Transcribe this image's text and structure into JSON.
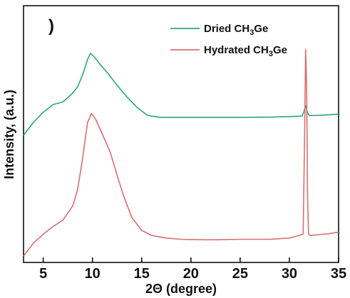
{
  "chart_data": {
    "type": "line",
    "title": "",
    "panel_label": ")",
    "xlabel": "2Θ (degree)",
    "ylabel": "Intensity, (a.u.)",
    "xlim": [
      3,
      35
    ],
    "ylim": [
      0,
      1
    ],
    "y_ticks_labeled": false,
    "grid": false,
    "legend_position": "top-right",
    "x_ticks": [
      5,
      10,
      15,
      20,
      25,
      30,
      35
    ],
    "x_tick_labels": [
      "5",
      "10",
      "15",
      "20",
      "25",
      "30",
      "35"
    ],
    "series": [
      {
        "name": "Dried CH₃Ge",
        "name_main": "Dried CH",
        "name_sub": "3",
        "name_tail": "Ge",
        "color": "#2aa875",
        "x": [
          3.0,
          4.0,
          5.0,
          6.0,
          7.0,
          8.0,
          8.5,
          9.0,
          9.5,
          9.8,
          10.2,
          10.8,
          11.5,
          12.5,
          13.5,
          14.5,
          15.5,
          16.0,
          17.0,
          19.0,
          22.0,
          25.0,
          28.0,
          30.0,
          31.3,
          31.5,
          31.65,
          31.8,
          31.95,
          32.1,
          33.0,
          34.0,
          35.0
        ],
        "y": [
          0.495,
          0.545,
          0.585,
          0.615,
          0.625,
          0.66,
          0.685,
          0.73,
          0.79,
          0.815,
          0.8,
          0.77,
          0.74,
          0.69,
          0.645,
          0.605,
          0.575,
          0.57,
          0.565,
          0.565,
          0.565,
          0.565,
          0.566,
          0.568,
          0.57,
          0.59,
          0.61,
          0.59,
          0.575,
          0.572,
          0.573,
          0.575,
          0.578
        ]
      },
      {
        "name": "Hydrated CH₃Ge",
        "name_main": "Hydrated CH",
        "name_sub": "3",
        "name_tail": "Ge",
        "color": "#d76f6f",
        "x": [
          3.0,
          4.0,
          5.0,
          6.0,
          7.0,
          8.0,
          8.5,
          9.0,
          9.5,
          9.9,
          10.3,
          11.0,
          11.8,
          12.5,
          13.2,
          14.0,
          15.0,
          16.0,
          17.5,
          19.0,
          22.0,
          25.0,
          28.0,
          30.0,
          31.0,
          31.4,
          31.55,
          31.65,
          31.75,
          31.85,
          31.95,
          32.1,
          33.0,
          34.0,
          35.0
        ],
        "y": [
          0.025,
          0.075,
          0.11,
          0.14,
          0.165,
          0.22,
          0.285,
          0.405,
          0.545,
          0.58,
          0.56,
          0.5,
          0.43,
          0.34,
          0.255,
          0.175,
          0.125,
          0.105,
          0.095,
          0.09,
          0.088,
          0.09,
          0.09,
          0.095,
          0.105,
          0.11,
          0.5,
          0.83,
          0.7,
          0.25,
          0.11,
          0.105,
          0.108,
          0.112,
          0.118
        ]
      }
    ]
  }
}
